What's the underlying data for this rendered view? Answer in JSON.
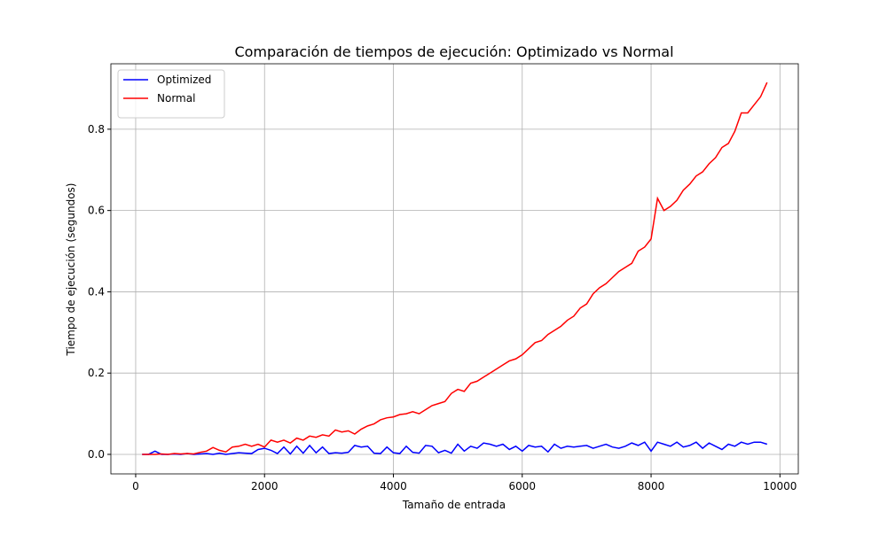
{
  "chart_data": {
    "type": "line",
    "title": "Comparación de tiempos de ejecución: Optimizado vs Normal",
    "xlabel": "Tamaño de entrada",
    "ylabel": "Tiempo de ejecución (segundos)",
    "x": [
      100,
      200,
      300,
      400,
      500,
      600,
      700,
      800,
      900,
      1000,
      1100,
      1200,
      1300,
      1400,
      1500,
      1600,
      1700,
      1800,
      1900,
      2000,
      2100,
      2200,
      2300,
      2400,
      2500,
      2600,
      2700,
      2800,
      2900,
      3000,
      3100,
      3200,
      3300,
      3400,
      3500,
      3600,
      3700,
      3800,
      3900,
      4000,
      4100,
      4200,
      4300,
      4400,
      4500,
      4600,
      4700,
      4800,
      4900,
      5000,
      5100,
      5200,
      5300,
      5400,
      5500,
      5600,
      5700,
      5800,
      5900,
      6000,
      6100,
      6200,
      6300,
      6400,
      6500,
      6600,
      6700,
      6800,
      6900,
      7000,
      7100,
      7200,
      7300,
      7400,
      7500,
      7600,
      7700,
      7800,
      7900,
      8000,
      8100,
      8200,
      8300,
      8400,
      8500,
      8600,
      8700,
      8800,
      8900,
      9000,
      9100,
      9200,
      9300,
      9400,
      9500,
      9600,
      9700,
      9800
    ],
    "series": [
      {
        "name": "Optimized",
        "color": "#0000ff",
        "values": [
          0,
          0,
          0.008,
          0,
          0,
          0.001,
          0,
          0.002,
          0,
          0.001,
          0.002,
          0,
          0.003,
          0,
          0.002,
          0.004,
          0.003,
          0.002,
          0.012,
          0.015,
          0.01,
          0.002,
          0.018,
          0.001,
          0.02,
          0.003,
          0.022,
          0.004,
          0.018,
          0.002,
          0.004,
          0.003,
          0.005,
          0.022,
          0.018,
          0.02,
          0.003,
          0.002,
          0.018,
          0.004,
          0.002,
          0.02,
          0.005,
          0.003,
          0.022,
          0.02,
          0.004,
          0.01,
          0.003,
          0.025,
          0.008,
          0.02,
          0.015,
          0.028,
          0.025,
          0.02,
          0.025,
          0.012,
          0.02,
          0.008,
          0.022,
          0.018,
          0.02,
          0.006,
          0.025,
          0.015,
          0.02,
          0.018,
          0.02,
          0.022,
          0.015,
          0.02,
          0.025,
          0.018,
          0.015,
          0.02,
          0.028,
          0.022,
          0.03,
          0.008,
          0.03,
          0.025,
          0.02,
          0.03,
          0.018,
          0.022,
          0.03,
          0.015,
          0.028,
          0.02,
          0.012,
          0.025,
          0.02,
          0.03,
          0.025,
          0.03,
          0.03,
          0.025
        ]
      },
      {
        "name": "Normal",
        "color": "#ff0000",
        "values": [
          0,
          0,
          0,
          0.001,
          0,
          0.002,
          0.001,
          0.002,
          0.001,
          0.005,
          0.008,
          0.017,
          0.01,
          0.006,
          0.018,
          0.02,
          0.025,
          0.02,
          0.025,
          0.018,
          0.035,
          0.03,
          0.035,
          0.028,
          0.04,
          0.035,
          0.045,
          0.042,
          0.048,
          0.045,
          0.06,
          0.055,
          0.058,
          0.05,
          0.062,
          0.07,
          0.075,
          0.085,
          0.09,
          0.092,
          0.098,
          0.1,
          0.105,
          0.1,
          0.11,
          0.12,
          0.125,
          0.13,
          0.15,
          0.16,
          0.155,
          0.175,
          0.18,
          0.19,
          0.2,
          0.21,
          0.22,
          0.23,
          0.235,
          0.245,
          0.26,
          0.275,
          0.28,
          0.295,
          0.305,
          0.315,
          0.33,
          0.34,
          0.36,
          0.37,
          0.395,
          0.41,
          0.42,
          0.435,
          0.45,
          0.46,
          0.47,
          0.5,
          0.51,
          0.53,
          0.63,
          0.6,
          0.61,
          0.625,
          0.65,
          0.665,
          0.685,
          0.695,
          0.715,
          0.73,
          0.755,
          0.765,
          0.795,
          0.84,
          0.84,
          0.86,
          0.88,
          0.915
        ]
      }
    ],
    "xlim": [
      -385,
      10285
    ],
    "ylim": [
      -0.048,
      0.961
    ],
    "xticks": [
      0,
      2000,
      4000,
      6000,
      8000,
      10000
    ],
    "yticks": [
      {
        "value": 0,
        "label": "0.0"
      },
      0.2,
      0.4,
      0.6,
      0.8
    ],
    "grid": true,
    "legend": "upper left"
  }
}
